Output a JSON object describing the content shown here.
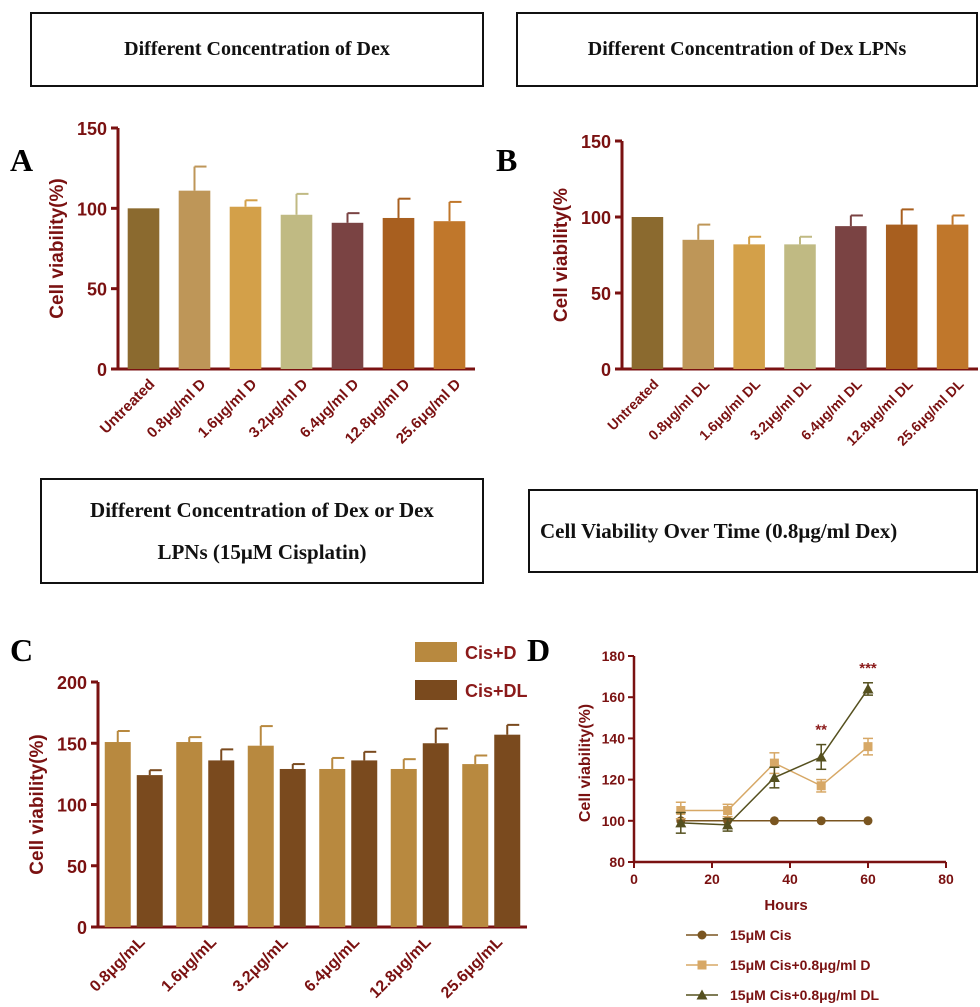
{
  "panels": {
    "A": {
      "title_box": "Different Concentration of Dex",
      "letter": "A"
    },
    "B": {
      "title_box": "Different Concentration of Dex LPNs",
      "letter": "B"
    },
    "C": {
      "title_box_line1": "Different Concentration of Dex or Dex",
      "title_box_line2": "LPNs (15μM Cisplatin)",
      "letter": "C"
    },
    "D": {
      "title_box": "Cell Viability Over Time (0.8μg/ml Dex)",
      "letter": "D"
    }
  },
  "colors": {
    "axis": "#7a1111",
    "bar_colors": [
      "#8b6a2f",
      "#be9658",
      "#d3a049",
      "#c0ba83",
      "#7a4343",
      "#a85f1f",
      "#c0772b"
    ],
    "cis_d": "#b8893f",
    "cis_dl": "#7a4a1e",
    "line_cis": "#7a5520",
    "line_d": "#d7a866",
    "line_dl": "#55501f",
    "signif": "#8b1a1a"
  },
  "chart_data": [
    {
      "id": "A",
      "type": "bar",
      "ylabel": "Cell viability(%)",
      "ylim": [
        0,
        150
      ],
      "yticks": [
        0,
        50,
        100,
        150
      ],
      "categories": [
        "Untreated",
        "0.8μg/ml D",
        "1.6μg/ml D",
        "3.2μg/ml D",
        "6.4μg/ml D",
        "12.8μg/ml D",
        "25.6μg/ml D"
      ],
      "values": [
        100,
        111,
        101,
        96,
        91,
        94,
        92
      ],
      "errors": [
        0,
        15,
        4,
        13,
        6,
        12,
        12
      ]
    },
    {
      "id": "B",
      "type": "bar",
      "ylabel": "Cell viability(%",
      "ylim": [
        0,
        150
      ],
      "yticks": [
        0,
        50,
        100,
        150
      ],
      "categories": [
        "Untreated",
        "0.8μg/ml DL",
        "1.6μg/ml DL",
        "3.2μg/ml DL",
        "6.4μg/ml DL",
        "12.8μg/ml DL",
        "25.6μg/ml DL"
      ],
      "values": [
        100,
        85,
        82,
        82,
        94,
        95,
        95
      ],
      "errors": [
        0,
        10,
        5,
        5,
        7,
        10,
        6
      ]
    },
    {
      "id": "C",
      "type": "bar",
      "ylabel": "Cell viability(%)",
      "ylim": [
        0,
        200
      ],
      "yticks": [
        0,
        50,
        100,
        150,
        200
      ],
      "categories": [
        "0.8μg/mL",
        "1.6μg/mL",
        "3.2μg/mL",
        "6.4μg/mL",
        "12.8μg/mL",
        "25.6μg/mL"
      ],
      "series": [
        {
          "name": "Cis+D",
          "values": [
            151,
            151,
            148,
            129,
            129,
            133
          ],
          "errors": [
            9,
            4,
            16,
            9,
            8,
            7
          ]
        },
        {
          "name": "Cis+DL",
          "values": [
            124,
            136,
            129,
            136,
            150,
            157
          ],
          "errors": [
            4,
            9,
            4,
            7,
            12,
            8
          ]
        }
      ],
      "legend": "top-right"
    },
    {
      "id": "D",
      "type": "line",
      "xlabel": "Hours",
      "ylabel": "Cell viability(%)",
      "xlim": [
        0,
        80
      ],
      "ylim": [
        80,
        180
      ],
      "xticks": [
        0,
        20,
        40,
        60,
        80
      ],
      "yticks": [
        80,
        100,
        120,
        140,
        160,
        180
      ],
      "x": [
        12,
        24,
        36,
        48,
        60
      ],
      "series": [
        {
          "name": "15μM Cis",
          "values": [
            100,
            100,
            100,
            100,
            100
          ],
          "errors": [
            0,
            0,
            0,
            0,
            0
          ],
          "marker": "circle"
        },
        {
          "name": "15μM Cis+0.8μg/ml D",
          "values": [
            105,
            105,
            128,
            117,
            136
          ],
          "errors": [
            4,
            3,
            5,
            3,
            4
          ],
          "marker": "square"
        },
        {
          "name": "15μM Cis+0.8μg/ml DL",
          "values": [
            99,
            98,
            121,
            131,
            164
          ],
          "errors": [
            5,
            3,
            5,
            6,
            3
          ],
          "marker": "triangle"
        }
      ],
      "annotations": [
        {
          "x": 48,
          "text": "**"
        },
        {
          "x": 60,
          "text": "***"
        }
      ],
      "legend": "bottom"
    }
  ]
}
